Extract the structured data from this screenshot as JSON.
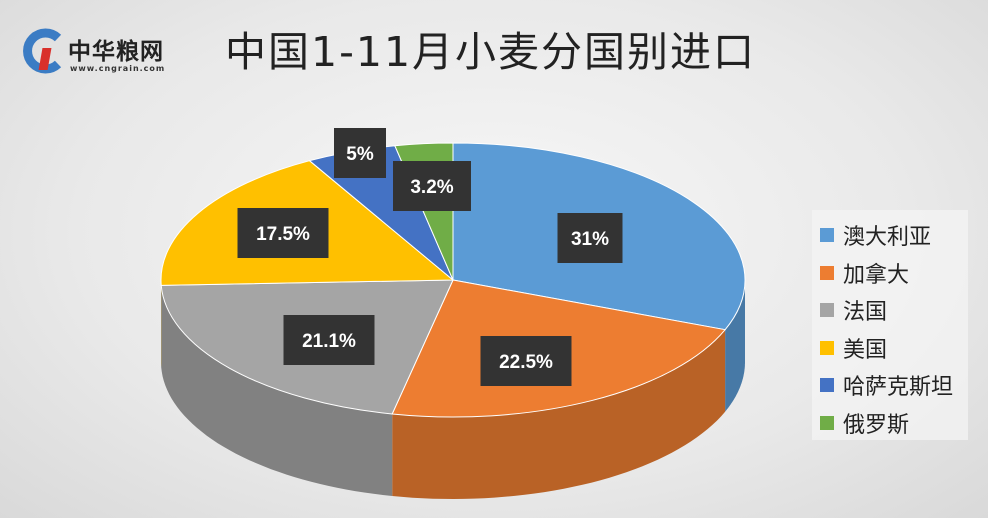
{
  "logo": {
    "name": "中华粮网",
    "url": "www.cngrain.com"
  },
  "chart_data": {
    "type": "pie",
    "title": "中国1-11月小麦分国别进口",
    "three_d": true,
    "start": "top, clockwise",
    "categories": [
      "澳大利亚",
      "加拿大",
      "法国",
      "美国",
      "哈萨克斯坦",
      "俄罗斯"
    ],
    "values": [
      31,
      22.5,
      21.1,
      17.5,
      5,
      3.2
    ],
    "labels": [
      "31%",
      "22.5%",
      "21.1%",
      "17.5%",
      "5%",
      "3.2%"
    ],
    "colors": [
      "#5B9BD5",
      "#ED7D31",
      "#A5A5A5",
      "#FFC000",
      "#4472C4",
      "#70AD47"
    ],
    "legend_position": "right"
  }
}
